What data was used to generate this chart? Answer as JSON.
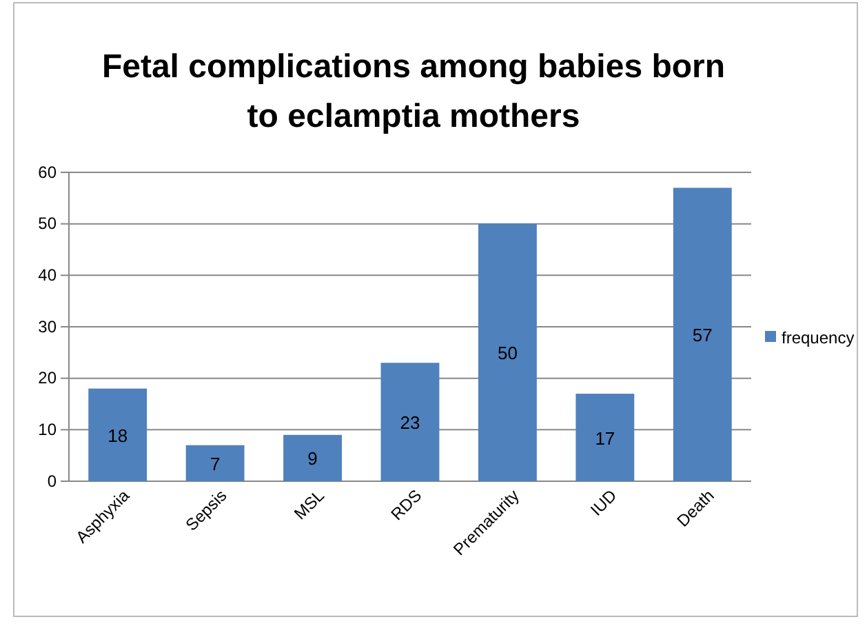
{
  "chart_data": {
    "type": "bar",
    "title": "Fetal complications among babies born to eclamptia mothers",
    "categories": [
      "Asphyxia",
      "Sepsis",
      "MSL",
      "RDS",
      "Prematurity",
      "IUD",
      "Death"
    ],
    "series": [
      {
        "name": "frequency",
        "color": "#4f81bd",
        "values": [
          18,
          7,
          9,
          23,
          50,
          17,
          57
        ]
      }
    ],
    "ylim": [
      0,
      60
    ],
    "yticks": [
      0,
      10,
      20,
      30,
      40,
      50,
      60
    ],
    "grid": "y",
    "legend": "right",
    "data_labels": true
  }
}
